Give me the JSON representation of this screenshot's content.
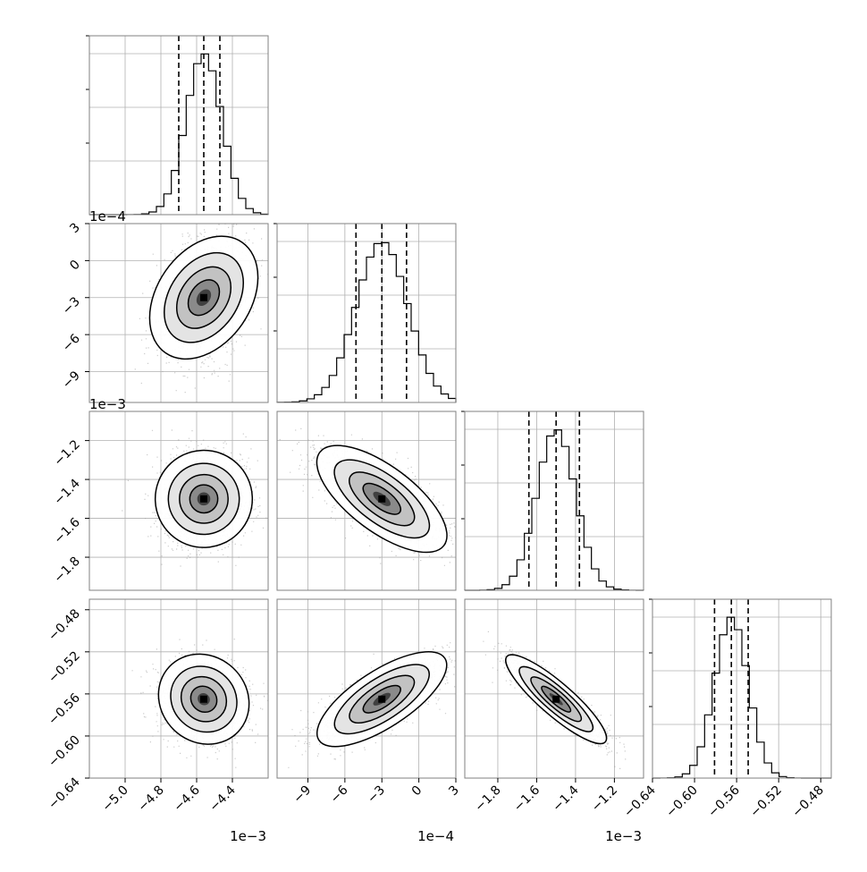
{
  "chart_data": {
    "type": "corner",
    "colors": {
      "frame": "#808080",
      "grid": "#b0b0b0",
      "scatter": "#a0a0a0",
      "line": "#000000"
    },
    "params": [
      {
        "ticks": [
          -5.0,
          -4.8,
          -4.6,
          -4.4
        ],
        "tick_labels": [
          "−5.0",
          "−4.8",
          "−4.6",
          "−4.4"
        ],
        "range": [
          -5.2,
          -4.2
        ],
        "offset_label": "1e−3",
        "mean": -4.56,
        "sd": 0.1,
        "quantiles": [
          -4.7,
          -4.56,
          -4.47
        ]
      },
      {
        "ticks": [
          -9,
          -6,
          -3,
          0,
          3
        ],
        "tick_labels": [
          "−9",
          "−6",
          "−3",
          "0",
          "3"
        ],
        "range": [
          -11.5,
          3
        ],
        "offset_label": "1e−4",
        "mean": -3.0,
        "sd": 2.1,
        "quantiles": [
          -5.1,
          -3.0,
          -1.0
        ]
      },
      {
        "ticks": [
          -1.8,
          -1.6,
          -1.4,
          -1.2
        ],
        "tick_labels": [
          "−1.8",
          "−1.6",
          "−1.4",
          "−1.2"
        ],
        "range": [
          -1.97,
          -1.05
        ],
        "offset_label": "1e−3",
        "mean": -1.5,
        "sd": 0.1,
        "quantiles": [
          -1.64,
          -1.5,
          -1.38
        ]
      },
      {
        "ticks": [
          -0.64,
          -0.6,
          -0.56,
          -0.52,
          -0.48
        ],
        "tick_labels": [
          "−0.64",
          "−0.60",
          "−0.56",
          "−0.52",
          "−0.48"
        ],
        "range": [
          -0.64,
          -0.47
        ],
        "offset_label": "",
        "mean": -0.565,
        "sd": 0.016,
        "quantiles": [
          -0.581,
          -0.565,
          -0.549
        ]
      }
    ],
    "correlations": [
      {
        "pair": [
          0,
          1
        ],
        "rho": 0.35
      },
      {
        "pair": [
          0,
          2
        ],
        "rho": 0.0
      },
      {
        "pair": [
          1,
          2
        ],
        "rho": -0.7
      },
      {
        "pair": [
          0,
          3
        ],
        "rho": -0.1
      },
      {
        "pair": [
          1,
          3
        ],
        "rho": 0.75
      },
      {
        "pair": [
          2,
          3
        ],
        "rho": -0.9
      }
    ]
  }
}
